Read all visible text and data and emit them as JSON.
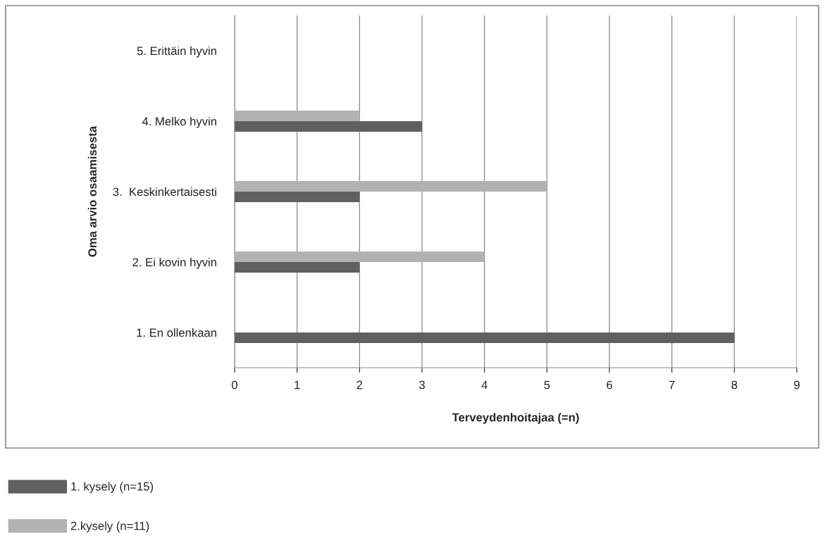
{
  "chart_data": {
    "type": "bar",
    "orientation": "horizontal",
    "xlabel": "Terveydenhoitajaa (=n)",
    "ylabel": "Oma arvio osaamisesta",
    "categories": [
      "5. Erittäin hyvin",
      "4. Melko hyvin",
      "3.  Keskinkertaisesti",
      "2. Ei kovin hyvin",
      "1. En ollenkaan"
    ],
    "series": [
      {
        "name": "1. kysely (n=15)",
        "color": "#606060",
        "values": [
          0,
          3,
          2,
          2,
          8
        ]
      },
      {
        "name": "2.kysely (n=11)",
        "color": "#b2b2b2",
        "values": [
          0,
          2,
          5,
          4,
          0
        ]
      }
    ],
    "xlim": [
      0,
      9
    ],
    "xticks": [
      0,
      1,
      2,
      3,
      4,
      5,
      6,
      7,
      8,
      9
    ],
    "grid": "x",
    "legend": "bottom left"
  }
}
